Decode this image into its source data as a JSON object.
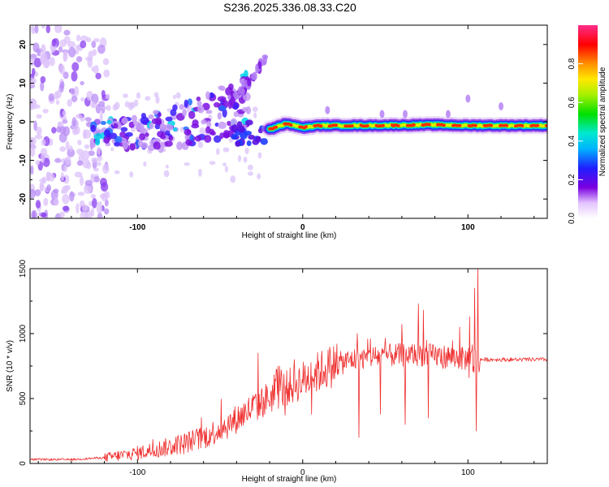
{
  "title": "S236.2025.336.08.33.C20",
  "colors": {
    "snr_line": "#ef2f2f",
    "axis": "#000000"
  },
  "chart_data": [
    {
      "type": "heatmap",
      "name": "spectrogram",
      "xlabel": "Height of straight line (km)",
      "ylabel": "Frequency (Hz)",
      "xlim": [
        -165,
        148
      ],
      "ylim": [
        -25,
        25
      ],
      "x_ticks": [
        -100,
        0,
        100
      ],
      "y_ticks": [
        20,
        10,
        0,
        -10,
        -20
      ],
      "colorbar": {
        "label": "Normalized spectral amplitude",
        "range": [
          0,
          1
        ],
        "ticks": [
          "0.0",
          "0.2",
          "0.4",
          "0.6",
          "0.8"
        ]
      },
      "features": {
        "noise_region_x": [
          -165,
          -125
        ],
        "scatter_band": [
          [
            -128,
            -3
          ],
          [
            -100,
            -3
          ],
          [
            -80,
            -2
          ],
          [
            -60,
            1
          ],
          [
            -45,
            3
          ],
          [
            -32,
            5
          ]
        ],
        "rising_streak": [
          [
            -45,
            5
          ],
          [
            -35,
            9
          ],
          [
            -28,
            13
          ],
          [
            -22,
            17
          ]
        ],
        "carrier_start_x": -20,
        "carrier_freq": [
          [
            -20,
            -2
          ],
          [
            -10,
            -0.5
          ],
          [
            0,
            -1.5
          ],
          [
            10,
            -1
          ],
          [
            40,
            -1
          ],
          [
            80,
            -0.8
          ],
          [
            100,
            -1
          ],
          [
            148,
            -1
          ]
        ]
      }
    },
    {
      "type": "line",
      "name": "snr",
      "xlabel": "Height of straight line (km)",
      "ylabel": "SNR (10 * v/v)",
      "xlim": [
        -165,
        148
      ],
      "ylim": [
        0,
        1500
      ],
      "x_ticks": [
        -100,
        0,
        100
      ],
      "y_ticks": [
        0,
        500,
        1000,
        1500
      ],
      "envelope": [
        [
          -165,
          30
        ],
        [
          -140,
          30
        ],
        [
          -120,
          45
        ],
        [
          -100,
          80
        ],
        [
          -80,
          130
        ],
        [
          -60,
          200
        ],
        [
          -45,
          300
        ],
        [
          -30,
          430
        ],
        [
          -15,
          550
        ],
        [
          0,
          640
        ],
        [
          15,
          740
        ],
        [
          30,
          800
        ],
        [
          50,
          830
        ],
        [
          70,
          840
        ],
        [
          90,
          820
        ],
        [
          100,
          800
        ],
        [
          105,
          800
        ],
        [
          120,
          800
        ],
        [
          148,
          800
        ]
      ],
      "spikes": [
        [
          -27,
          850
        ],
        [
          -15,
          750
        ],
        [
          -13,
          720
        ],
        [
          -5,
          800
        ],
        [
          33,
          1000
        ],
        [
          34,
          200
        ],
        [
          41,
          960
        ],
        [
          47,
          380
        ],
        [
          60,
          1070
        ],
        [
          62,
          300
        ],
        [
          70,
          1230
        ],
        [
          73,
          1180
        ],
        [
          76,
          350
        ],
        [
          95,
          1050
        ],
        [
          101,
          1130
        ],
        [
          104,
          1350
        ],
        [
          105,
          250
        ],
        [
          106,
          1500
        ]
      ]
    }
  ]
}
